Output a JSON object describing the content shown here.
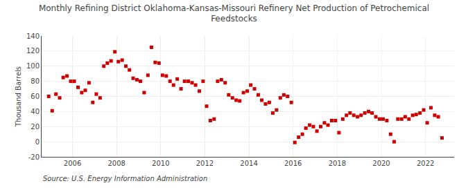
{
  "chart_data": {
    "type": "scatter",
    "title": "Monthly Refining District Oklahoma-Kansas-Missouri Refinery Net Production of Petrochemical\nFeedstocks",
    "ylabel": "Thousand Barrels",
    "annotations": [
      "Source: U.S. Energy Information Administration"
    ],
    "color": "#cc0000",
    "marker": "square",
    "grid": true,
    "xlim": [
      2004.6,
      2023.3
    ],
    "xticks": [
      2006,
      2008,
      2010,
      2012,
      2014,
      2016,
      2018,
      2020,
      2022
    ],
    "ylim": [
      -20,
      140
    ],
    "yticks": [
      -20,
      0,
      20,
      40,
      60,
      80,
      100,
      120,
      140
    ],
    "x": [
      2004.92,
      2005.08,
      2005.25,
      2005.42,
      2005.58,
      2005.75,
      2005.92,
      2006.08,
      2006.25,
      2006.42,
      2006.58,
      2006.75,
      2006.92,
      2007.08,
      2007.25,
      2007.42,
      2007.58,
      2007.75,
      2007.92,
      2008.08,
      2008.25,
      2008.42,
      2008.58,
      2008.75,
      2008.92,
      2009.08,
      2009.25,
      2009.42,
      2009.58,
      2009.75,
      2009.92,
      2010.08,
      2010.25,
      2010.42,
      2010.58,
      2010.75,
      2010.92,
      2011.08,
      2011.25,
      2011.42,
      2011.58,
      2011.75,
      2011.92,
      2012.08,
      2012.25,
      2012.42,
      2012.58,
      2012.75,
      2012.92,
      2013.08,
      2013.25,
      2013.42,
      2013.58,
      2013.75,
      2013.92,
      2014.08,
      2014.25,
      2014.42,
      2014.58,
      2014.75,
      2014.92,
      2015.08,
      2015.25,
      2015.42,
      2015.58,
      2015.75,
      2015.92,
      2016.08,
      2016.25,
      2016.42,
      2016.58,
      2016.75,
      2016.92,
      2017.08,
      2017.25,
      2017.42,
      2017.58,
      2017.75,
      2017.92,
      2018.08,
      2018.25,
      2018.42,
      2018.58,
      2018.75,
      2018.92,
      2019.08,
      2019.25,
      2019.42,
      2019.58,
      2019.75,
      2019.92,
      2020.08,
      2020.25,
      2020.42,
      2020.58,
      2020.75,
      2020.92,
      2021.08,
      2021.25,
      2021.42,
      2021.58,
      2021.75,
      2021.92,
      2022.08,
      2022.25,
      2022.42,
      2022.58,
      2022.75
    ],
    "values": [
      60,
      41,
      63,
      58,
      85,
      87,
      80,
      80,
      72,
      65,
      68,
      78,
      52,
      63,
      58,
      100,
      104,
      107,
      119,
      106,
      108,
      100,
      95,
      84,
      82,
      80,
      65,
      88,
      125,
      105,
      104,
      88,
      87,
      80,
      75,
      83,
      70,
      80,
      80,
      78,
      75,
      67,
      80,
      47,
      28,
      30,
      80,
      82,
      78,
      62,
      58,
      55,
      54,
      65,
      67,
      75,
      70,
      62,
      55,
      50,
      52,
      38,
      42,
      58,
      62,
      60,
      52,
      -1,
      6,
      10,
      18,
      22,
      20,
      14,
      20,
      25,
      22,
      28,
      28,
      12,
      30,
      35,
      38,
      35,
      33,
      35,
      38,
      40,
      38,
      33,
      30,
      30,
      28,
      10,
      0,
      30,
      30,
      33,
      30,
      35,
      36,
      38,
      42,
      25,
      45,
      35,
      33,
      5
    ]
  }
}
